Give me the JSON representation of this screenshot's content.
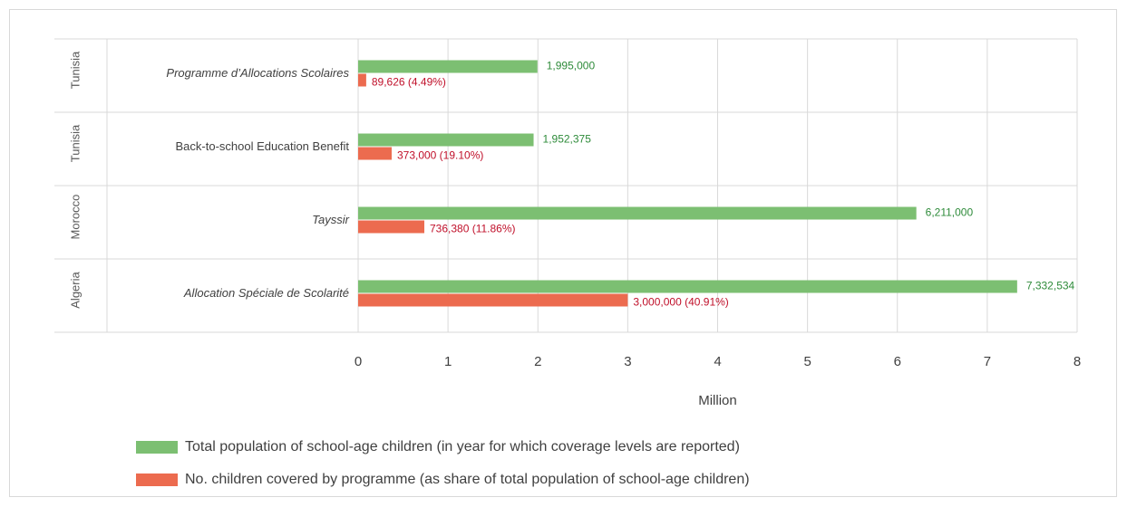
{
  "chart_data": {
    "type": "bar",
    "orientation": "horizontal",
    "xlabel": "Million",
    "xlim": [
      0,
      8
    ],
    "xticks": [
      "0",
      "1",
      "2",
      "3",
      "4",
      "5",
      "6",
      "7",
      "8"
    ],
    "grid": true,
    "legend_position": "bottom-left",
    "categories": [
      {
        "group": "Tunisia",
        "label": "Programme d’Allocations Scolaires",
        "italic": true
      },
      {
        "group": "Tunisia",
        "label": "Back-to-school Education Benefit",
        "italic": false
      },
      {
        "group": "Morocco",
        "label": "Tayssir",
        "italic": true
      },
      {
        "group": "Algeria",
        "label": "Allocation Spéciale de Scolarité",
        "italic": true
      }
    ],
    "series": [
      {
        "name": "Total population of school-age children  (in year for which coverage levels are reported)",
        "color": "#7cbf72",
        "label_color": "#2e8b3a",
        "values": [
          1.995,
          1.952375,
          6.211,
          7.332534
        ],
        "labels": [
          "1,995,000",
          "1,952,375",
          "6,211,000",
          "7,332,534"
        ]
      },
      {
        "name": "No. children covered by programme (as share of total population of school-age children)",
        "color": "#ec6b4f",
        "label_color": "#c0102a",
        "values": [
          0.089626,
          0.373,
          0.73638,
          3.0
        ],
        "labels": [
          "89,626 (4.49%)",
          "373,000 (19.10%)",
          "736,380 (11.86%)",
          "3,000,000 (40.91%)"
        ]
      }
    ]
  }
}
